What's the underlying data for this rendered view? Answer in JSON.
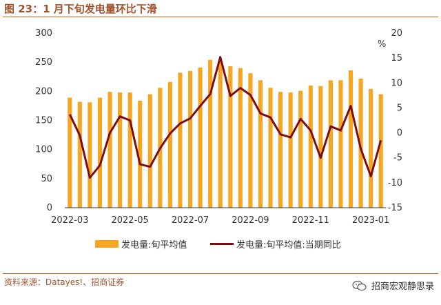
{
  "header": {
    "title": "图 23：1 月下旬发电量环比下滑"
  },
  "footer": {
    "source": "资料来源：Datayes!、招商证券",
    "brand": "招商宏观静思录",
    "brand_icon": "wechat-icon"
  },
  "colors": {
    "bar": "#f5a623",
    "line": "#7b0d10",
    "accent": "#a0522d"
  },
  "chart_data": {
    "type": "bar",
    "x_tick_labels": [
      "2022-03",
      "2022-05",
      "2022-07",
      "2022-09",
      "2022-11",
      "2023-01"
    ],
    "y_left": {
      "ticks": [
        0,
        50,
        100,
        150,
        200,
        250,
        300
      ],
      "ylim": [
        0,
        300
      ]
    },
    "y_right": {
      "unit": "%",
      "ticks": [
        -15,
        -10,
        -5,
        0,
        5,
        10,
        15,
        20
      ],
      "ylim": [
        -15,
        20
      ]
    },
    "grid": false,
    "legend_position": "bottom",
    "series": [
      {
        "name": "发电量:旬平均值",
        "type": "bar",
        "axis": "left",
        "values": [
          189,
          182,
          181,
          189,
          199,
          198,
          198,
          184,
          195,
          206,
          216,
          232,
          235,
          241,
          254,
          250,
          243,
          240,
          231,
          219,
          206,
          199,
          198,
          201,
          210,
          209,
          219,
          219,
          236,
          222,
          204,
          195
        ]
      },
      {
        "name": "发电量:旬平均值:当期同比",
        "type": "line",
        "axis": "right",
        "values": [
          3.7,
          -0.5,
          -9.0,
          -6.5,
          0.0,
          3.3,
          2.5,
          -6.3,
          -6.8,
          -3.1,
          -0.1,
          1.9,
          2.9,
          5.4,
          7.8,
          15.2,
          7.4,
          9.0,
          7.6,
          3.9,
          3.1,
          -0.3,
          -0.9,
          2.8,
          0.5,
          -5.0,
          1.3,
          0.5,
          5.4,
          -3.2,
          -8.7,
          -1.5
        ]
      }
    ]
  },
  "layout_x_tick_positions": [
    0,
    6,
    12,
    18,
    24,
    30
  ]
}
